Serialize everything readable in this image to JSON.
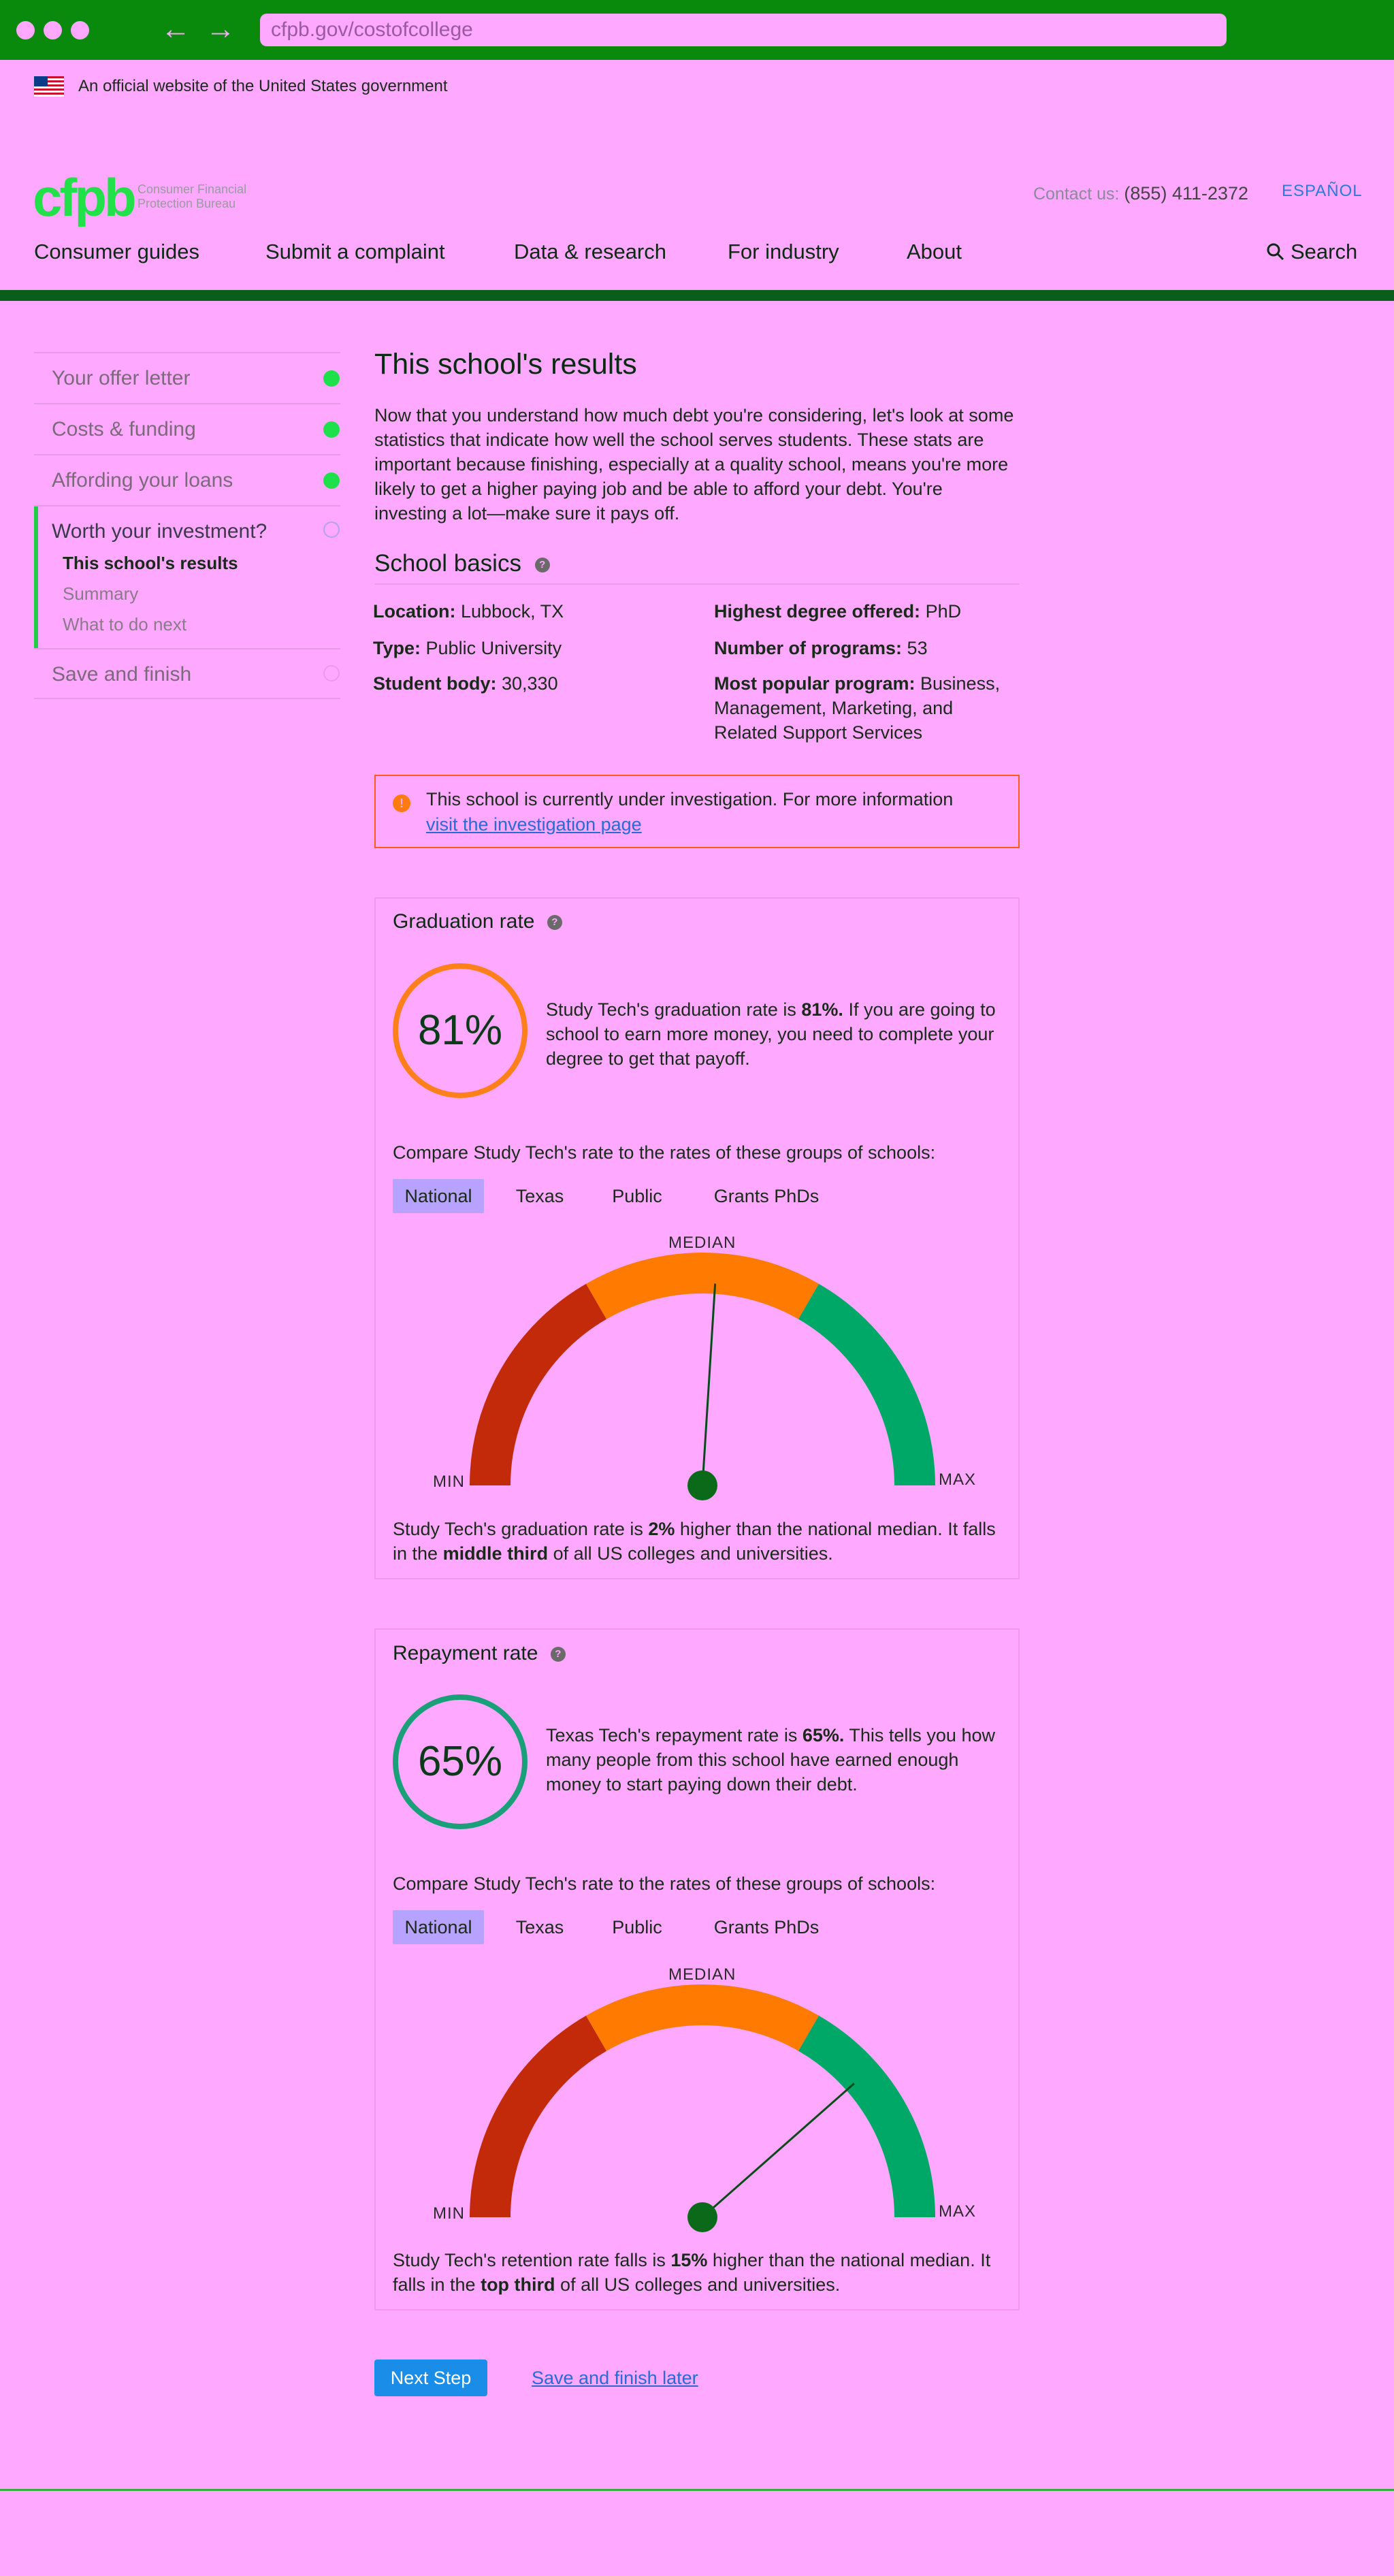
{
  "browser": {
    "url": "cfpb.gov/costofcollege",
    "back_icon": "arrow-left-icon",
    "forward_icon": "arrow-right-icon"
  },
  "gov_banner": {
    "text": "An official website of the United States government",
    "flag_icon": "us-flag-icon"
  },
  "header": {
    "logo_text": "cfpb",
    "logo_sub_1": "Consumer Financial",
    "logo_sub_2": "Protection Bureau",
    "contact_label": "Contact us:",
    "contact_phone": "(855) 411-2372",
    "espanol": "ESPAÑOL",
    "nav": [
      "Consumer guides",
      "Submit a complaint",
      "Data & research",
      "For industry",
      "About"
    ],
    "search_label": "Search"
  },
  "sidebar": {
    "items": [
      {
        "label": "Your offer letter",
        "status": "complete"
      },
      {
        "label": "Costs & funding",
        "status": "complete"
      },
      {
        "label": "Affording your loans",
        "status": "complete"
      },
      {
        "label": "Worth your investment?",
        "status": "current"
      },
      {
        "label": "Save and finish",
        "status": "incomplete"
      }
    ],
    "subitems": [
      "This school's results",
      "Summary",
      "What to do next"
    ]
  },
  "main": {
    "title": "This school's results",
    "intro": "Now that you understand how much debt you're considering, let's look at some statistics that indicate how well the school serves students. These stats are important because finishing, especially at a quality school, means you're more likely to get a higher paying job and be able to afford your debt. You're investing a lot—make sure it pays off.",
    "basics_title": "School basics",
    "basics": {
      "location_label": "Location:",
      "location": "Lubbock, TX",
      "type_label": "Type:",
      "type": "Public University",
      "student_body_label": "Student body:",
      "student_body": "30,330",
      "degree_label": "Highest degree offered:",
      "degree": "PhD",
      "programs_label": "Number of programs:",
      "programs": "53",
      "popular_label": "Most popular program:",
      "popular": "Business, Management, Marketing, and Related Support Services"
    },
    "alert": {
      "text": "This school is currently under investigation. For more information",
      "link": "visit the investigation page",
      "icon": "warning-icon"
    },
    "graduation": {
      "title": "Graduation rate",
      "value": "81%",
      "desc_a": "Study Tech's graduation rate is ",
      "desc_b": "81%.",
      "desc_c": " If you are going to school to earn more money, you need to complete your degree to get that payoff.",
      "compare": "Compare Study Tech's rate to the rates of these groups of schools:",
      "tabs": [
        "National",
        "Texas",
        "Public",
        "Grants PhDs"
      ],
      "gauge": {
        "median": "MEDIAN",
        "min": "MIN",
        "max": "MAX",
        "needle_fraction": 0.52
      },
      "summary_a": "Study Tech's graduation rate is ",
      "summary_b": "2%",
      "summary_c": " higher than the national median. It falls in the ",
      "summary_d": "middle third",
      "summary_e": " of all US colleges and universities."
    },
    "repayment": {
      "title": "Repayment rate",
      "value": "65%",
      "desc_a": "Texas Tech's repayment rate is ",
      "desc_b": "65%.",
      "desc_c": " This tells you how many people from this school have earned enough money to start paying down their debt.",
      "compare": "Compare Study Tech's rate to the rates of these groups of schools:",
      "tabs": [
        "National",
        "Texas",
        "Public",
        "Grants PhDs"
      ],
      "gauge": {
        "median": "MEDIAN",
        "min": "MIN",
        "max": "MAX",
        "needle_fraction": 0.77
      },
      "summary_a": "Study Tech's retention rate falls is ",
      "summary_b": "15%",
      "summary_c": " higher than the national median. It falls in the ",
      "summary_d": "top third",
      "summary_e": " of all US colleges and universities."
    },
    "next_button": "Next Step",
    "save_later": "Save and finish later"
  },
  "colors": {
    "accent": "#0a8a0c",
    "low": "#c22a0a",
    "mid": "#ff7a00",
    "high": "#00a868",
    "ring_grad": "#ff7f1a",
    "ring_rep": "#1aa078"
  }
}
